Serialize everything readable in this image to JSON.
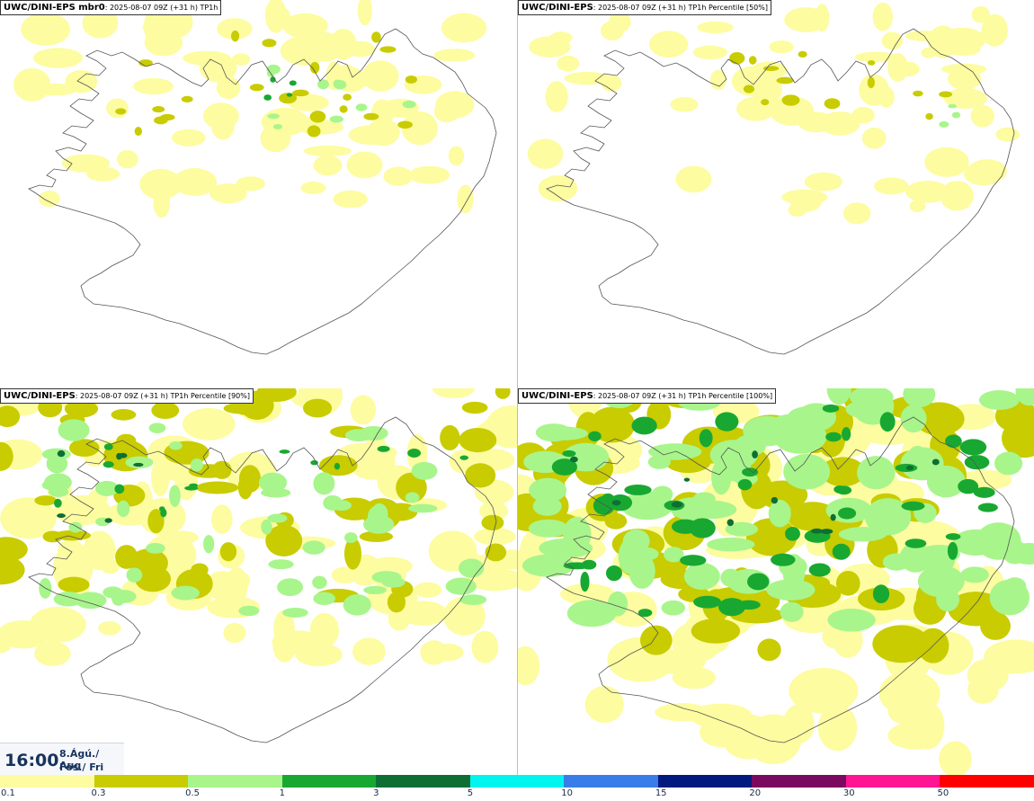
{
  "colors": {
    "c01": "#fdfca0",
    "c03": "#c8cc00",
    "c05": "#a8f58c",
    "c1": "#18a832",
    "c3": "#0e6e34",
    "coast": "#555555"
  },
  "panels": [
    {
      "model": "UWC/DINI-EPS mbr0",
      "meta": ": 2025-08-07 09Z (+31 h) TP1h"
    },
    {
      "model": "UWC/DINI-EPS",
      "meta": ": 2025-08-07 09Z (+31 h) TP1h Percentile [50%]"
    },
    {
      "model": "UWC/DINI-EPS",
      "meta": ": 2025-08-07 09Z (+31 h) TP1h Percentile [90%]"
    },
    {
      "model": "UWC/DINI-EPS",
      "meta": ": 2025-08-07 09Z (+31 h) TP1h Percentile [100%]"
    }
  ],
  "valid_time": {
    "time": "16:00",
    "date_line1": "8.Ágú./ Aug",
    "date_line2": "Fös./ Fri"
  },
  "legend": {
    "colors": [
      "#fdfca0",
      "#c8cc00",
      "#a8f58c",
      "#18a832",
      "#0e6e34",
      "#00f5ee",
      "#3a7de8",
      "#001a80",
      "#7a0a60",
      "#ff1493",
      "#ff0000"
    ],
    "labels": [
      "0.1",
      "0.3",
      "0.5",
      "1",
      "3",
      "5",
      "10",
      "15",
      "20",
      "30",
      "50"
    ]
  }
}
